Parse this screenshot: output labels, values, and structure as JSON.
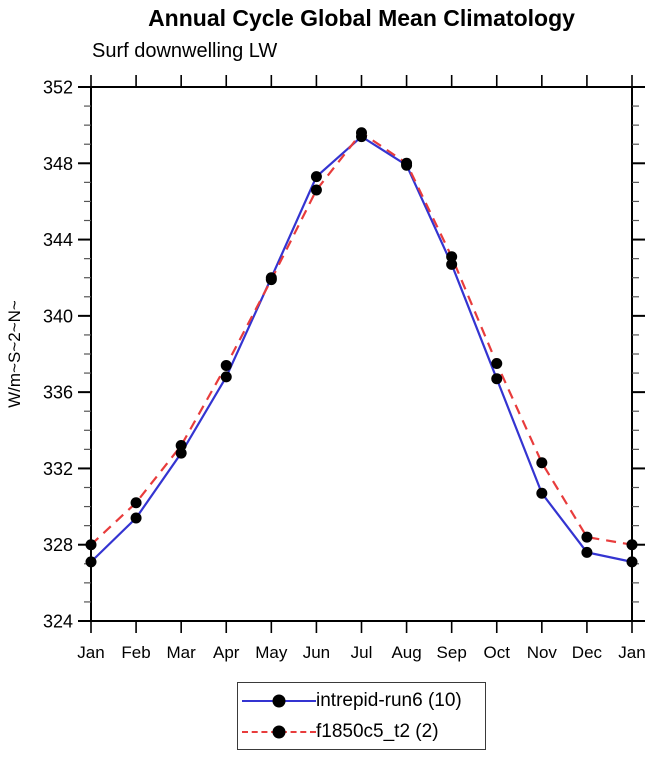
{
  "title": "Annual Cycle Global Mean Climatology",
  "subtitle": "Surf downwelling LW",
  "chart_data": {
    "type": "line",
    "categories": [
      "Jan",
      "Feb",
      "Mar",
      "Apr",
      "May",
      "Jun",
      "Jul",
      "Aug",
      "Sep",
      "Oct",
      "Nov",
      "Dec",
      "Jan"
    ],
    "xlabel": "",
    "ylabel": "W/m~S~2~N~",
    "ylim": [
      324,
      352
    ],
    "y_major_step": 4,
    "y_minor_step": 1,
    "grid": false,
    "legend_position": "bottom-center",
    "marker": "filled-circle",
    "marker_color": "#000000",
    "series": [
      {
        "name": "intrepid-run6 (10)",
        "color": "#3434d1",
        "style": "solid",
        "values": [
          327.1,
          329.4,
          332.8,
          336.8,
          342.0,
          347.3,
          349.4,
          347.9,
          342.7,
          336.7,
          330.7,
          327.6,
          327.1
        ]
      },
      {
        "name": "f1850c5_t2 (2)",
        "color": "#e83c3c",
        "style": "dashed",
        "values": [
          328.0,
          330.2,
          333.2,
          337.4,
          341.9,
          346.6,
          349.6,
          348.0,
          343.1,
          337.5,
          332.3,
          328.4,
          328.0
        ]
      }
    ]
  }
}
